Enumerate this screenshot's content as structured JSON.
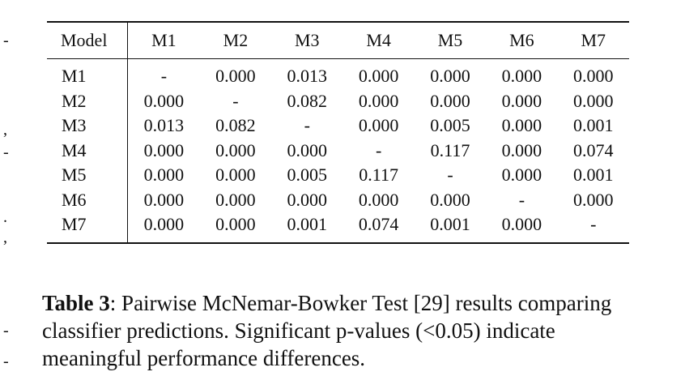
{
  "margin_marks": [
    "-",
    ",",
    "-",
    ".",
    ",",
    "-",
    "-"
  ],
  "table": {
    "headers": [
      "Model",
      "M1",
      "M2",
      "M3",
      "M4",
      "M5",
      "M6",
      "M7"
    ],
    "rows": [
      {
        "model": "M1",
        "values": [
          "-",
          "0.000",
          "0.013",
          "0.000",
          "0.000",
          "0.000",
          "0.000"
        ]
      },
      {
        "model": "M2",
        "values": [
          "0.000",
          "-",
          "0.082",
          "0.000",
          "0.000",
          "0.000",
          "0.000"
        ]
      },
      {
        "model": "M3",
        "values": [
          "0.013",
          "0.082",
          "-",
          "0.000",
          "0.005",
          "0.000",
          "0.001"
        ]
      },
      {
        "model": "M4",
        "values": [
          "0.000",
          "0.000",
          "0.000",
          "-",
          "0.117",
          "0.000",
          "0.074"
        ]
      },
      {
        "model": "M5",
        "values": [
          "0.000",
          "0.000",
          "0.005",
          "0.117",
          "-",
          "0.000",
          "0.001"
        ]
      },
      {
        "model": "M6",
        "values": [
          "0.000",
          "0.000",
          "0.000",
          "0.000",
          "0.000",
          "-",
          "0.000"
        ]
      },
      {
        "model": "M7",
        "values": [
          "0.000",
          "0.000",
          "0.001",
          "0.074",
          "0.001",
          "0.000",
          "-"
        ]
      }
    ]
  },
  "caption": {
    "label": "Table 3",
    "text": ": Pairwise McNemar-Bowker Test [29] results comparing classifier predictions. Significant p-values (<0.05) indicate meaningful performance differences."
  }
}
